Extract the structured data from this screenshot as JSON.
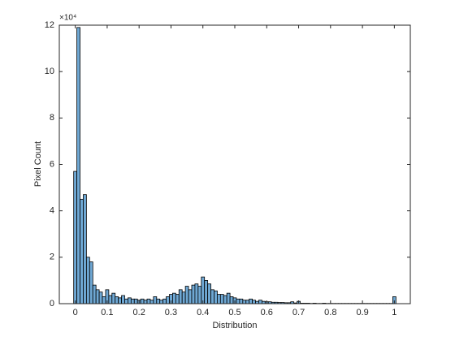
{
  "chart_data": {
    "type": "histogram",
    "xlabel": "Distribution",
    "ylabel": "Pixel Count",
    "y_exponent": "×10⁴",
    "bins": [
      -0.005,
      0.005,
      0.015,
      0.025,
      0.035,
      0.045,
      0.055,
      0.065,
      0.075,
      0.085,
      0.095,
      0.105,
      0.115,
      0.125,
      0.135,
      0.145,
      0.155,
      0.165,
      0.175,
      0.185,
      0.195,
      0.205,
      0.215,
      0.225,
      0.235,
      0.245,
      0.255,
      0.265,
      0.275,
      0.285,
      0.295,
      0.305,
      0.315,
      0.325,
      0.335,
      0.345,
      0.355,
      0.365,
      0.375,
      0.385,
      0.395,
      0.405,
      0.415,
      0.425,
      0.435,
      0.445,
      0.455,
      0.465,
      0.475,
      0.485,
      0.495,
      0.505,
      0.515,
      0.525,
      0.535,
      0.545,
      0.555,
      0.565,
      0.575,
      0.585,
      0.595,
      0.605,
      0.615,
      0.625,
      0.635,
      0.645,
      0.655,
      0.665,
      0.675,
      0.685,
      0.695,
      0.705,
      0.715,
      0.725,
      0.735,
      0.745,
      0.755,
      0.765,
      0.775,
      0.785,
      0.795,
      0.805,
      0.815,
      0.825,
      0.835,
      0.845,
      0.855,
      0.865,
      0.875,
      0.885,
      0.895,
      0.905,
      0.915,
      0.925,
      0.935,
      0.945,
      0.955,
      0.965,
      0.975,
      0.985,
      0.995,
      1.005
    ],
    "counts": [
      5.7,
      11.9,
      4.5,
      4.7,
      2.0,
      1.8,
      0.8,
      0.6,
      0.5,
      0.3,
      0.6,
      0.35,
      0.45,
      0.3,
      0.25,
      0.35,
      0.2,
      0.25,
      0.2,
      0.2,
      0.15,
      0.2,
      0.15,
      0.2,
      0.15,
      0.3,
      0.2,
      0.15,
      0.2,
      0.3,
      0.4,
      0.45,
      0.4,
      0.6,
      0.5,
      0.75,
      0.6,
      0.8,
      0.85,
      0.75,
      1.15,
      1.0,
      0.85,
      0.6,
      0.55,
      0.4,
      0.4,
      0.35,
      0.45,
      0.3,
      0.25,
      0.2,
      0.2,
      0.15,
      0.15,
      0.2,
      0.15,
      0.1,
      0.15,
      0.1,
      0.08,
      0.08,
      0.06,
      0.06,
      0.05,
      0.05,
      0.04,
      0.04,
      0.08,
      0.03,
      0.1,
      0.02,
      0.02,
      0.02,
      0.01,
      0.02,
      0.01,
      0.01,
      0.02,
      0.01,
      0.01,
      0.01,
      0.01,
      0.01,
      0.01,
      0.01,
      0.01,
      0.01,
      0.01,
      0.01,
      0.01,
      0.01,
      0.01,
      0.01,
      0.01,
      0.01,
      0.01,
      0.01,
      0.01,
      0.01,
      0.3
    ],
    "color": "#6fa8d4",
    "edgecolor": "#000000",
    "xlim": [
      -0.05,
      1.05
    ],
    "xticks": [
      0,
      0.1,
      0.2,
      0.3,
      0.4,
      0.5,
      0.6,
      0.7,
      0.8,
      0.9,
      1
    ],
    "ylim": [
      0,
      12
    ],
    "yticks": [
      0,
      2,
      4,
      6,
      8,
      10,
      12
    ]
  }
}
